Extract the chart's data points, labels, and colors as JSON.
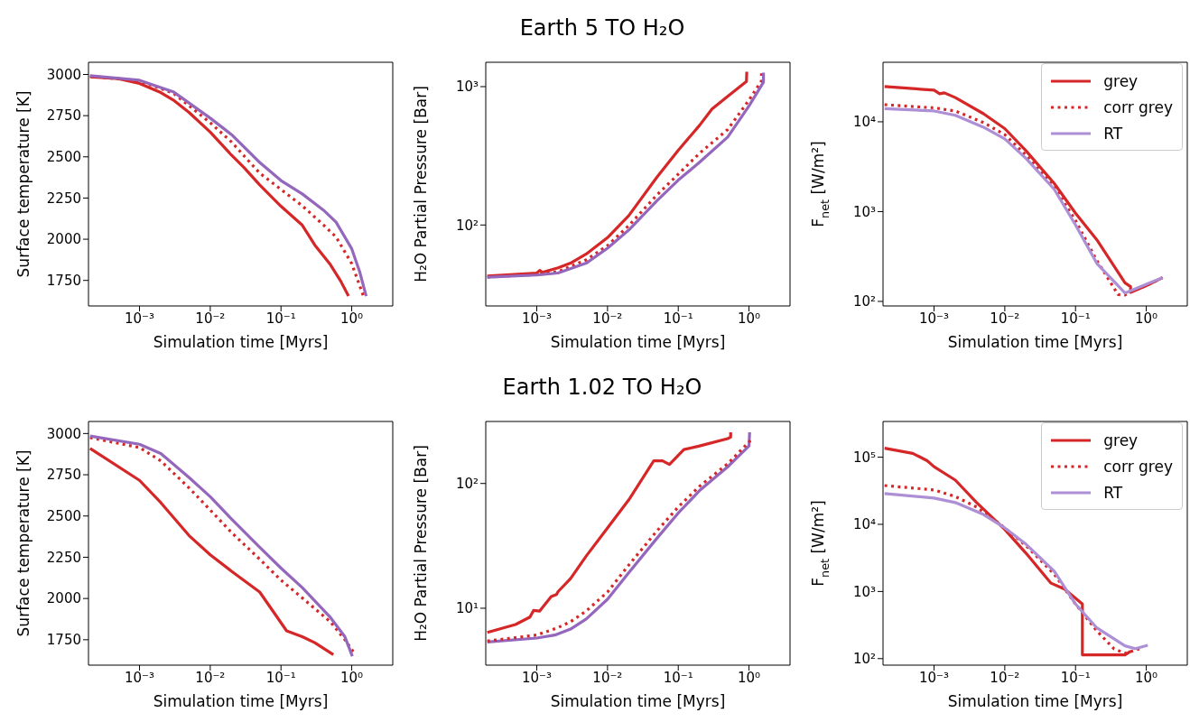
{
  "chart_data": [
    {
      "type": "line",
      "xlabel": "Simulation time [Myrs]",
      "ylabel": "Surface temperature [K]",
      "log": "x",
      "xlim": [
        0.00019,
        3.8
      ],
      "xticks": [
        {
          "value": 0.001,
          "label": "10⁻³"
        },
        {
          "value": 0.01,
          "label": "10⁻²"
        },
        {
          "value": 0.1,
          "label": "10⁻¹"
        },
        {
          "value": 1,
          "label": "10⁰"
        }
      ],
      "ylim": [
        1595,
        3074
      ],
      "yticks": [
        1750,
        2000,
        2250,
        2500,
        2750,
        3000
      ],
      "series": [
        {
          "color": "#d62728",
          "line_style": "solid",
          "x": [
            0.0002,
            0.0005,
            0.001,
            0.002,
            0.003,
            0.005,
            0.01,
            0.02,
            0.03,
            0.05,
            0.1,
            0.2,
            0.3,
            0.5,
            0.7,
            0.9
          ],
          "values": [
            2985,
            2975,
            2945,
            2890,
            2845,
            2770,
            2650,
            2510,
            2435,
            2330,
            2200,
            2085,
            1965,
            1845,
            1745,
            1655
          ]
        },
        {
          "color": "#d62728",
          "line_style": "dotted",
          "x": [
            0.0002,
            0.001,
            0.003,
            0.01,
            0.02,
            0.05,
            0.1,
            0.2,
            0.4,
            0.6,
            1.0,
            1.45
          ],
          "values": [
            2990,
            2960,
            2887,
            2707,
            2590,
            2401,
            2302,
            2203,
            2086,
            2014,
            1852,
            1660
          ]
        },
        {
          "color": "#9467bd",
          "line_style": "solid",
          "x": [
            0.0002,
            0.001,
            0.003,
            0.01,
            0.02,
            0.05,
            0.1,
            0.2,
            0.4,
            0.6,
            1.0,
            1.3,
            1.6
          ],
          "values": [
            2993,
            2965,
            2895,
            2735,
            2635,
            2466,
            2356,
            2275,
            2176,
            2104,
            1942,
            1800,
            1655
          ]
        }
      ]
    },
    {
      "type": "line",
      "title": "Earth 5 TO H₂O",
      "xlabel": "Simulation time [Myrs]",
      "ylabel": "H₂O Partial Pressure [Bar]",
      "log": "xy",
      "xlim": [
        0.00019,
        3.8
      ],
      "xticks": [
        {
          "value": 0.001,
          "label": "10⁻³"
        },
        {
          "value": 0.01,
          "label": "10⁻²"
        },
        {
          "value": 0.1,
          "label": "10⁻¹"
        },
        {
          "value": 1,
          "label": "10⁰"
        }
      ],
      "ylim": [
        26,
        1500
      ],
      "yticks": [
        {
          "value": 100,
          "label": "10²"
        },
        {
          "value": 1000,
          "label": "10³"
        }
      ],
      "series": [
        {
          "color": "#d62728",
          "line_style": "solid",
          "x": [
            0.0002,
            0.001,
            0.0011,
            0.0012,
            0.002,
            0.003,
            0.005,
            0.01,
            0.02,
            0.05,
            0.1,
            0.2,
            0.3,
            0.5,
            0.92,
            0.93
          ],
          "values": [
            42.7,
            45,
            47,
            45.5,
            49,
            53,
            61.7,
            81,
            117,
            222,
            347,
            525,
            690,
            850,
            1090,
            1280
          ]
        },
        {
          "color": "#d62728",
          "line_style": "dotted",
          "x": [
            0.0002,
            0.001,
            0.002,
            0.005,
            0.01,
            0.02,
            0.05,
            0.1,
            0.2,
            0.5,
            1.0,
            1.5,
            1.5
          ],
          "values": [
            42,
            44,
            46,
            56,
            71,
            99,
            165,
            233,
            330,
            490,
            800,
            1100,
            1250
          ]
        },
        {
          "color": "#9467bd",
          "line_style": "solid",
          "x": [
            0.0002,
            0.001,
            0.002,
            0.005,
            0.01,
            0.02,
            0.05,
            0.1,
            0.2,
            0.5,
            1.0,
            1.6,
            1.6
          ],
          "values": [
            42,
            43.5,
            45,
            53,
            68,
            92,
            150,
            211,
            284,
            432,
            726,
            1077,
            1260
          ]
        }
      ]
    },
    {
      "type": "line",
      "xlabel": "Simulation time [Myrs]",
      "ylabel": "F$_{net}$ [W/m²]",
      "log": "xy",
      "legend": "top right",
      "xlim": [
        0.00019,
        3.8
      ],
      "xticks": [
        {
          "value": 0.001,
          "label": "10⁻³"
        },
        {
          "value": 0.01,
          "label": "10⁻²"
        },
        {
          "value": 0.1,
          "label": "10⁻¹"
        },
        {
          "value": 1,
          "label": "10⁰"
        }
      ],
      "ylim": [
        89,
        46000
      ],
      "yticks": [
        {
          "value": 100,
          "label": "10²"
        },
        {
          "value": 1000,
          "label": "10³"
        },
        {
          "value": 10000,
          "label": "10⁴"
        }
      ],
      "series": [
        {
          "name": "grey",
          "color": "#d62728",
          "line_style": "solid",
          "x": [
            0.0002,
            0.001,
            0.0012,
            0.0014,
            0.002,
            0.005,
            0.01,
            0.02,
            0.05,
            0.1,
            0.2,
            0.5,
            0.6,
            0.6,
            1.0,
            1.7
          ],
          "values": [
            24700,
            22500,
            20500,
            21000,
            18600,
            12300,
            8400,
            4750,
            2060,
            960,
            485,
            161,
            146,
            126,
            150,
            184
          ]
        },
        {
          "name": "corr grey",
          "color": "#d62728",
          "line_style": "dotted",
          "x": [
            0.0002,
            0.001,
            0.002,
            0.005,
            0.01,
            0.02,
            0.05,
            0.1,
            0.2,
            0.4,
            0.5,
            0.6,
            1.0,
            1.7
          ],
          "values": [
            15500,
            14300,
            13200,
            9800,
            7200,
            4240,
            1900,
            795,
            285,
            119,
            118,
            128,
            150,
            184
          ]
        },
        {
          "name": "RT",
          "color": "#ad8fd6",
          "line_style": "solid",
          "x": [
            0.0002,
            0.001,
            0.002,
            0.005,
            0.01,
            0.02,
            0.05,
            0.1,
            0.2,
            0.5,
            1.0,
            1.7
          ],
          "values": [
            14000,
            13200,
            11800,
            8700,
            6450,
            3900,
            1770,
            710,
            265,
            124,
            155,
            184
          ]
        }
      ]
    },
    {
      "type": "line",
      "xlabel": "Simulation time [Myrs]",
      "ylabel": "Surface temperature [K]",
      "log": "x",
      "xlim": [
        0.00019,
        3.8
      ],
      "xticks": [
        {
          "value": 0.001,
          "label": "10⁻³"
        },
        {
          "value": 0.01,
          "label": "10⁻²"
        },
        {
          "value": 0.1,
          "label": "10⁻¹"
        },
        {
          "value": 1,
          "label": "10⁰"
        }
      ],
      "ylim": [
        1596,
        3073
      ],
      "yticks": [
        1750,
        2000,
        2250,
        2500,
        2750,
        3000
      ],
      "series": [
        {
          "color": "#d62728",
          "line_style": "solid",
          "x": [
            0.0002,
            0.001,
            0.002,
            0.005,
            0.01,
            0.02,
            0.05,
            0.07,
            0.12,
            0.2,
            0.3,
            0.55
          ],
          "values": [
            2910,
            2716,
            2581,
            2382,
            2265,
            2165,
            2039,
            1949,
            1804,
            1768,
            1732,
            1660
          ]
        },
        {
          "color": "#d62728",
          "line_style": "dotted",
          "x": [
            0.0002,
            0.001,
            0.002,
            0.005,
            0.01,
            0.02,
            0.05,
            0.1,
            0.2,
            0.5,
            0.8,
            1.05
          ],
          "values": [
            2975,
            2915,
            2834,
            2671,
            2536,
            2400,
            2238,
            2111,
            2003,
            1858,
            1750,
            1678
          ]
        },
        {
          "color": "#9467bd",
          "line_style": "solid",
          "x": [
            0.0002,
            0.001,
            0.002,
            0.005,
            0.01,
            0.02,
            0.05,
            0.1,
            0.2,
            0.5,
            0.8,
            1.02
          ],
          "values": [
            2985,
            2935,
            2879,
            2734,
            2617,
            2482,
            2310,
            2184,
            2066,
            1885,
            1768,
            1650
          ]
        }
      ]
    },
    {
      "type": "line",
      "title": "Earth 1.02 TO H₂O",
      "xlabel": "Simulation time [Myrs]",
      "ylabel": "H₂O Partial Pressure [Bar]",
      "log": "xy",
      "xlim": [
        0.00019,
        3.8
      ],
      "xticks": [
        {
          "value": 0.001,
          "label": "10⁻³"
        },
        {
          "value": 0.01,
          "label": "10⁻²"
        },
        {
          "value": 0.1,
          "label": "10⁻¹"
        },
        {
          "value": 1,
          "label": "10⁰"
        }
      ],
      "ylim": [
        3.5,
        314
      ],
      "yticks": [
        {
          "value": 10,
          "label": "10¹"
        },
        {
          "value": 100,
          "label": "10²"
        }
      ],
      "series": [
        {
          "color": "#d62728",
          "line_style": "solid",
          "x": [
            0.0002,
            0.0005,
            0.0008,
            0.0009,
            0.0011,
            0.0016,
            0.0019,
            0.002,
            0.003,
            0.005,
            0.01,
            0.02,
            0.045,
            0.06,
            0.075,
            0.12,
            0.2,
            0.5,
            0.55,
            0.55
          ],
          "values": [
            6.4,
            7.4,
            8.5,
            9.6,
            9.5,
            12.4,
            12.9,
            13.6,
            17.3,
            26.2,
            44,
            74,
            152,
            152,
            142,
            187,
            200,
            229,
            235,
            257
          ]
        },
        {
          "color": "#9467bd",
          "line_style": "solid",
          "x": [
            0.0002,
            0.001,
            0.0018,
            0.003,
            0.005,
            0.01,
            0.02,
            0.05,
            0.1,
            0.2,
            0.5,
            1.0,
            1.02
          ],
          "values": [
            5.37,
            5.77,
            6.1,
            6.8,
            8.2,
            11.8,
            19.3,
            36.4,
            58,
            87.7,
            136,
            200,
            257
          ]
        },
        {
          "color": "#d62728",
          "line_style": "dotted",
          "x": [
            0.0002,
            0.001,
            0.002,
            0.003,
            0.005,
            0.01,
            0.02,
            0.05,
            0.1,
            0.2,
            0.5,
            1.05
          ],
          "values": [
            5.46,
            6.1,
            7.0,
            7.8,
            9.5,
            13.5,
            22.2,
            41.7,
            64.8,
            95,
            144,
            221
          ]
        }
      ]
    },
    {
      "type": "line",
      "xlabel": "Simulation time [Myrs]",
      "ylabel": "F$_{net}$ [W/m²]",
      "log": "xy",
      "legend": "top right",
      "xlim": [
        0.00019,
        3.8
      ],
      "xticks": [
        {
          "value": 0.001,
          "label": "10⁻³"
        },
        {
          "value": 0.01,
          "label": "10⁻²"
        },
        {
          "value": 0.1,
          "label": "10⁻¹"
        },
        {
          "value": 1,
          "label": "10⁰"
        }
      ],
      "ylim": [
        80,
        340000
      ],
      "yticks": [
        {
          "value": 100,
          "label": "10²"
        },
        {
          "value": 1000,
          "label": "10³"
        },
        {
          "value": 10000,
          "label": "10⁴"
        },
        {
          "value": 100000,
          "label": "10⁵"
        }
      ],
      "series": [
        {
          "name": "grey",
          "color": "#d62728",
          "line_style": "solid",
          "x": [
            0.0002,
            0.0005,
            0.0008,
            0.001,
            0.002,
            0.004,
            0.01,
            0.02,
            0.045,
            0.07,
            0.125,
            0.125,
            0.5,
            0.6
          ],
          "values": [
            136000,
            114000,
            88400,
            72000,
            45500,
            21100,
            8400,
            3700,
            1330,
            1085,
            650,
            114,
            114,
            129
          ]
        },
        {
          "name": "corr grey",
          "color": "#d62728",
          "line_style": "dotted",
          "x": [
            0.0002,
            0.001,
            0.002,
            0.004,
            0.01,
            0.02,
            0.05,
            0.1,
            0.2,
            0.35,
            0.5,
            0.8
          ],
          "values": [
            37800,
            32500,
            25900,
            18100,
            8850,
            4790,
            1810,
            650,
            259,
            140,
            120,
            140
          ]
        },
        {
          "name": "RT",
          "color": "#ad8fd6",
          "line_style": "solid",
          "x": [
            0.0002,
            0.001,
            0.002,
            0.005,
            0.01,
            0.02,
            0.05,
            0.1,
            0.2,
            0.5,
            0.7,
            1.05
          ],
          "values": [
            28700,
            24600,
            21100,
            14000,
            8850,
            5040,
            2000,
            650,
            287,
            155,
            141,
            158
          ]
        }
      ]
    }
  ]
}
